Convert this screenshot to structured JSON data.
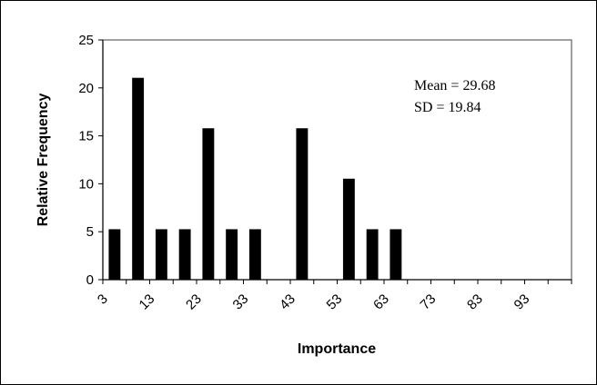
{
  "chart_data": {
    "type": "bar",
    "title": "",
    "xlabel": "Importance",
    "ylabel": "Relative Frequency",
    "ylim": [
      0,
      25
    ],
    "yticks": [
      0,
      5,
      10,
      15,
      20,
      25
    ],
    "xlim": [
      3,
      103
    ],
    "xtick_labels": [
      "3",
      "13",
      "23",
      "33",
      "43",
      "53",
      "63",
      "73",
      "83",
      "93"
    ],
    "bin_width": 5,
    "categories": [
      "3",
      "8",
      "13",
      "18",
      "23",
      "28",
      "33",
      "38",
      "43",
      "48",
      "53",
      "58",
      "63",
      "68",
      "73",
      "78",
      "83",
      "88",
      "93",
      "98"
    ],
    "values": [
      5.26,
      21.05,
      5.26,
      5.26,
      15.79,
      5.26,
      5.26,
      0,
      15.79,
      0,
      10.53,
      5.26,
      5.26,
      0,
      0,
      0,
      0,
      0,
      0,
      0
    ],
    "bar_color": "#000000",
    "grid": false,
    "annotations": [
      "Mean = 29.68",
      "SD = 19.84"
    ]
  }
}
